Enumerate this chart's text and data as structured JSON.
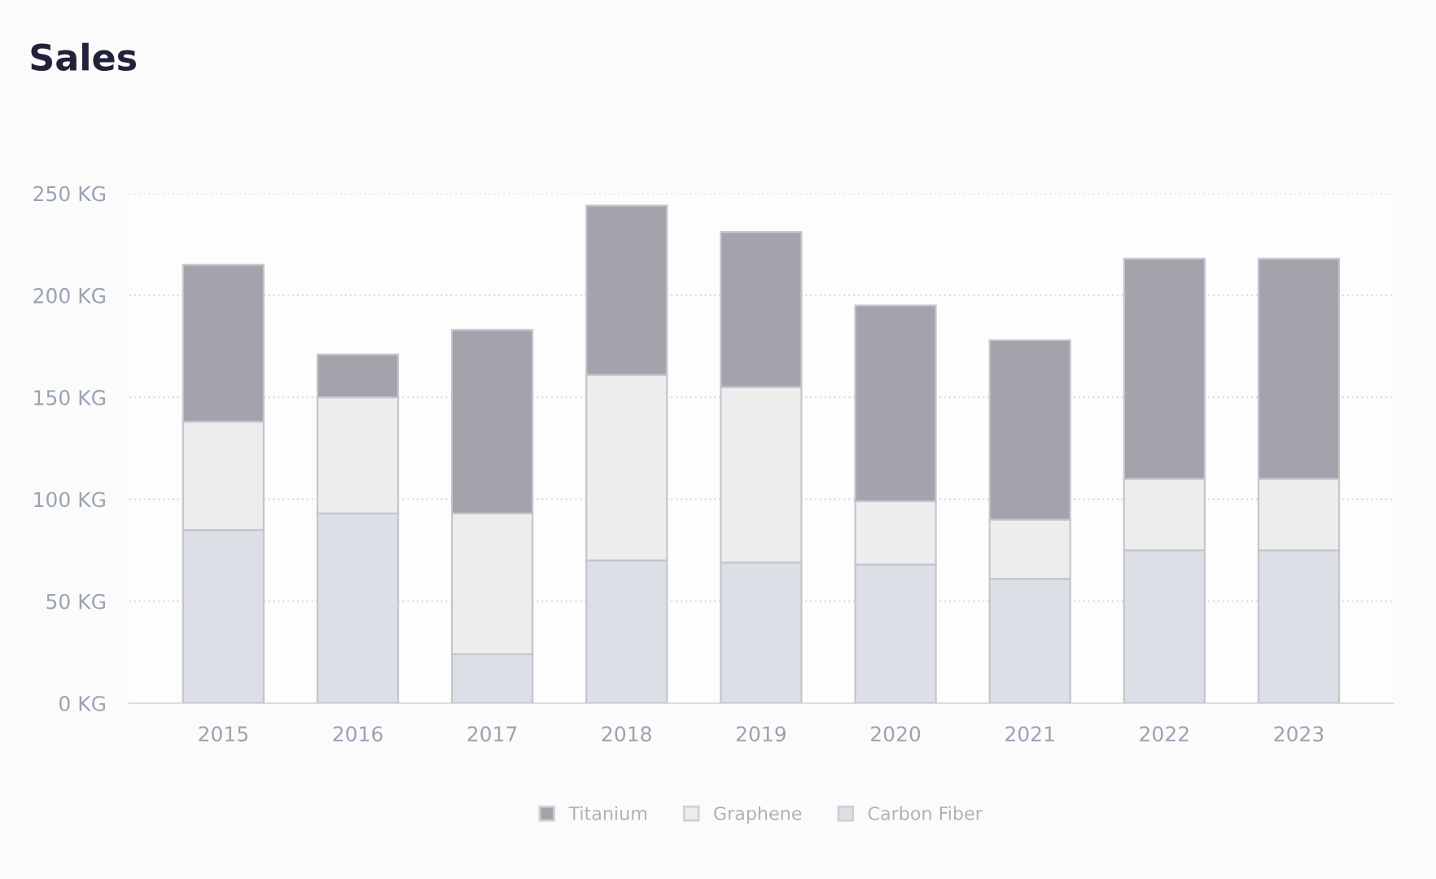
{
  "chart_data": {
    "type": "bar",
    "title": "Sales",
    "stacked": true,
    "categories": [
      "2015",
      "2016",
      "2017",
      "2018",
      "2019",
      "2020",
      "2021",
      "2022",
      "2023"
    ],
    "series": [
      {
        "name": "Carbon Fiber",
        "color": "#dcdfe6",
        "values": [
          85,
          93,
          24,
          70,
          69,
          68,
          61,
          75,
          75
        ]
      },
      {
        "name": "Graphene",
        "color": "#ededed",
        "values": [
          53,
          57,
          69,
          91,
          86,
          31,
          29,
          35,
          35
        ]
      },
      {
        "name": "Titanium",
        "color": "#a3a3ac",
        "values": [
          77,
          21,
          90,
          83,
          76,
          96,
          88,
          108,
          108
        ]
      }
    ],
    "ylim": [
      0,
      250
    ],
    "yticks": [
      {
        "value": 0,
        "label": "0 KG"
      },
      {
        "value": 50,
        "label": "50 KG"
      },
      {
        "value": 100,
        "label": "100 KG"
      },
      {
        "value": 150,
        "label": "150 KG"
      },
      {
        "value": 200,
        "label": "200 KG"
      },
      {
        "value": 250,
        "label": "250 KG"
      }
    ],
    "grid": "y",
    "legend": "bottom"
  }
}
